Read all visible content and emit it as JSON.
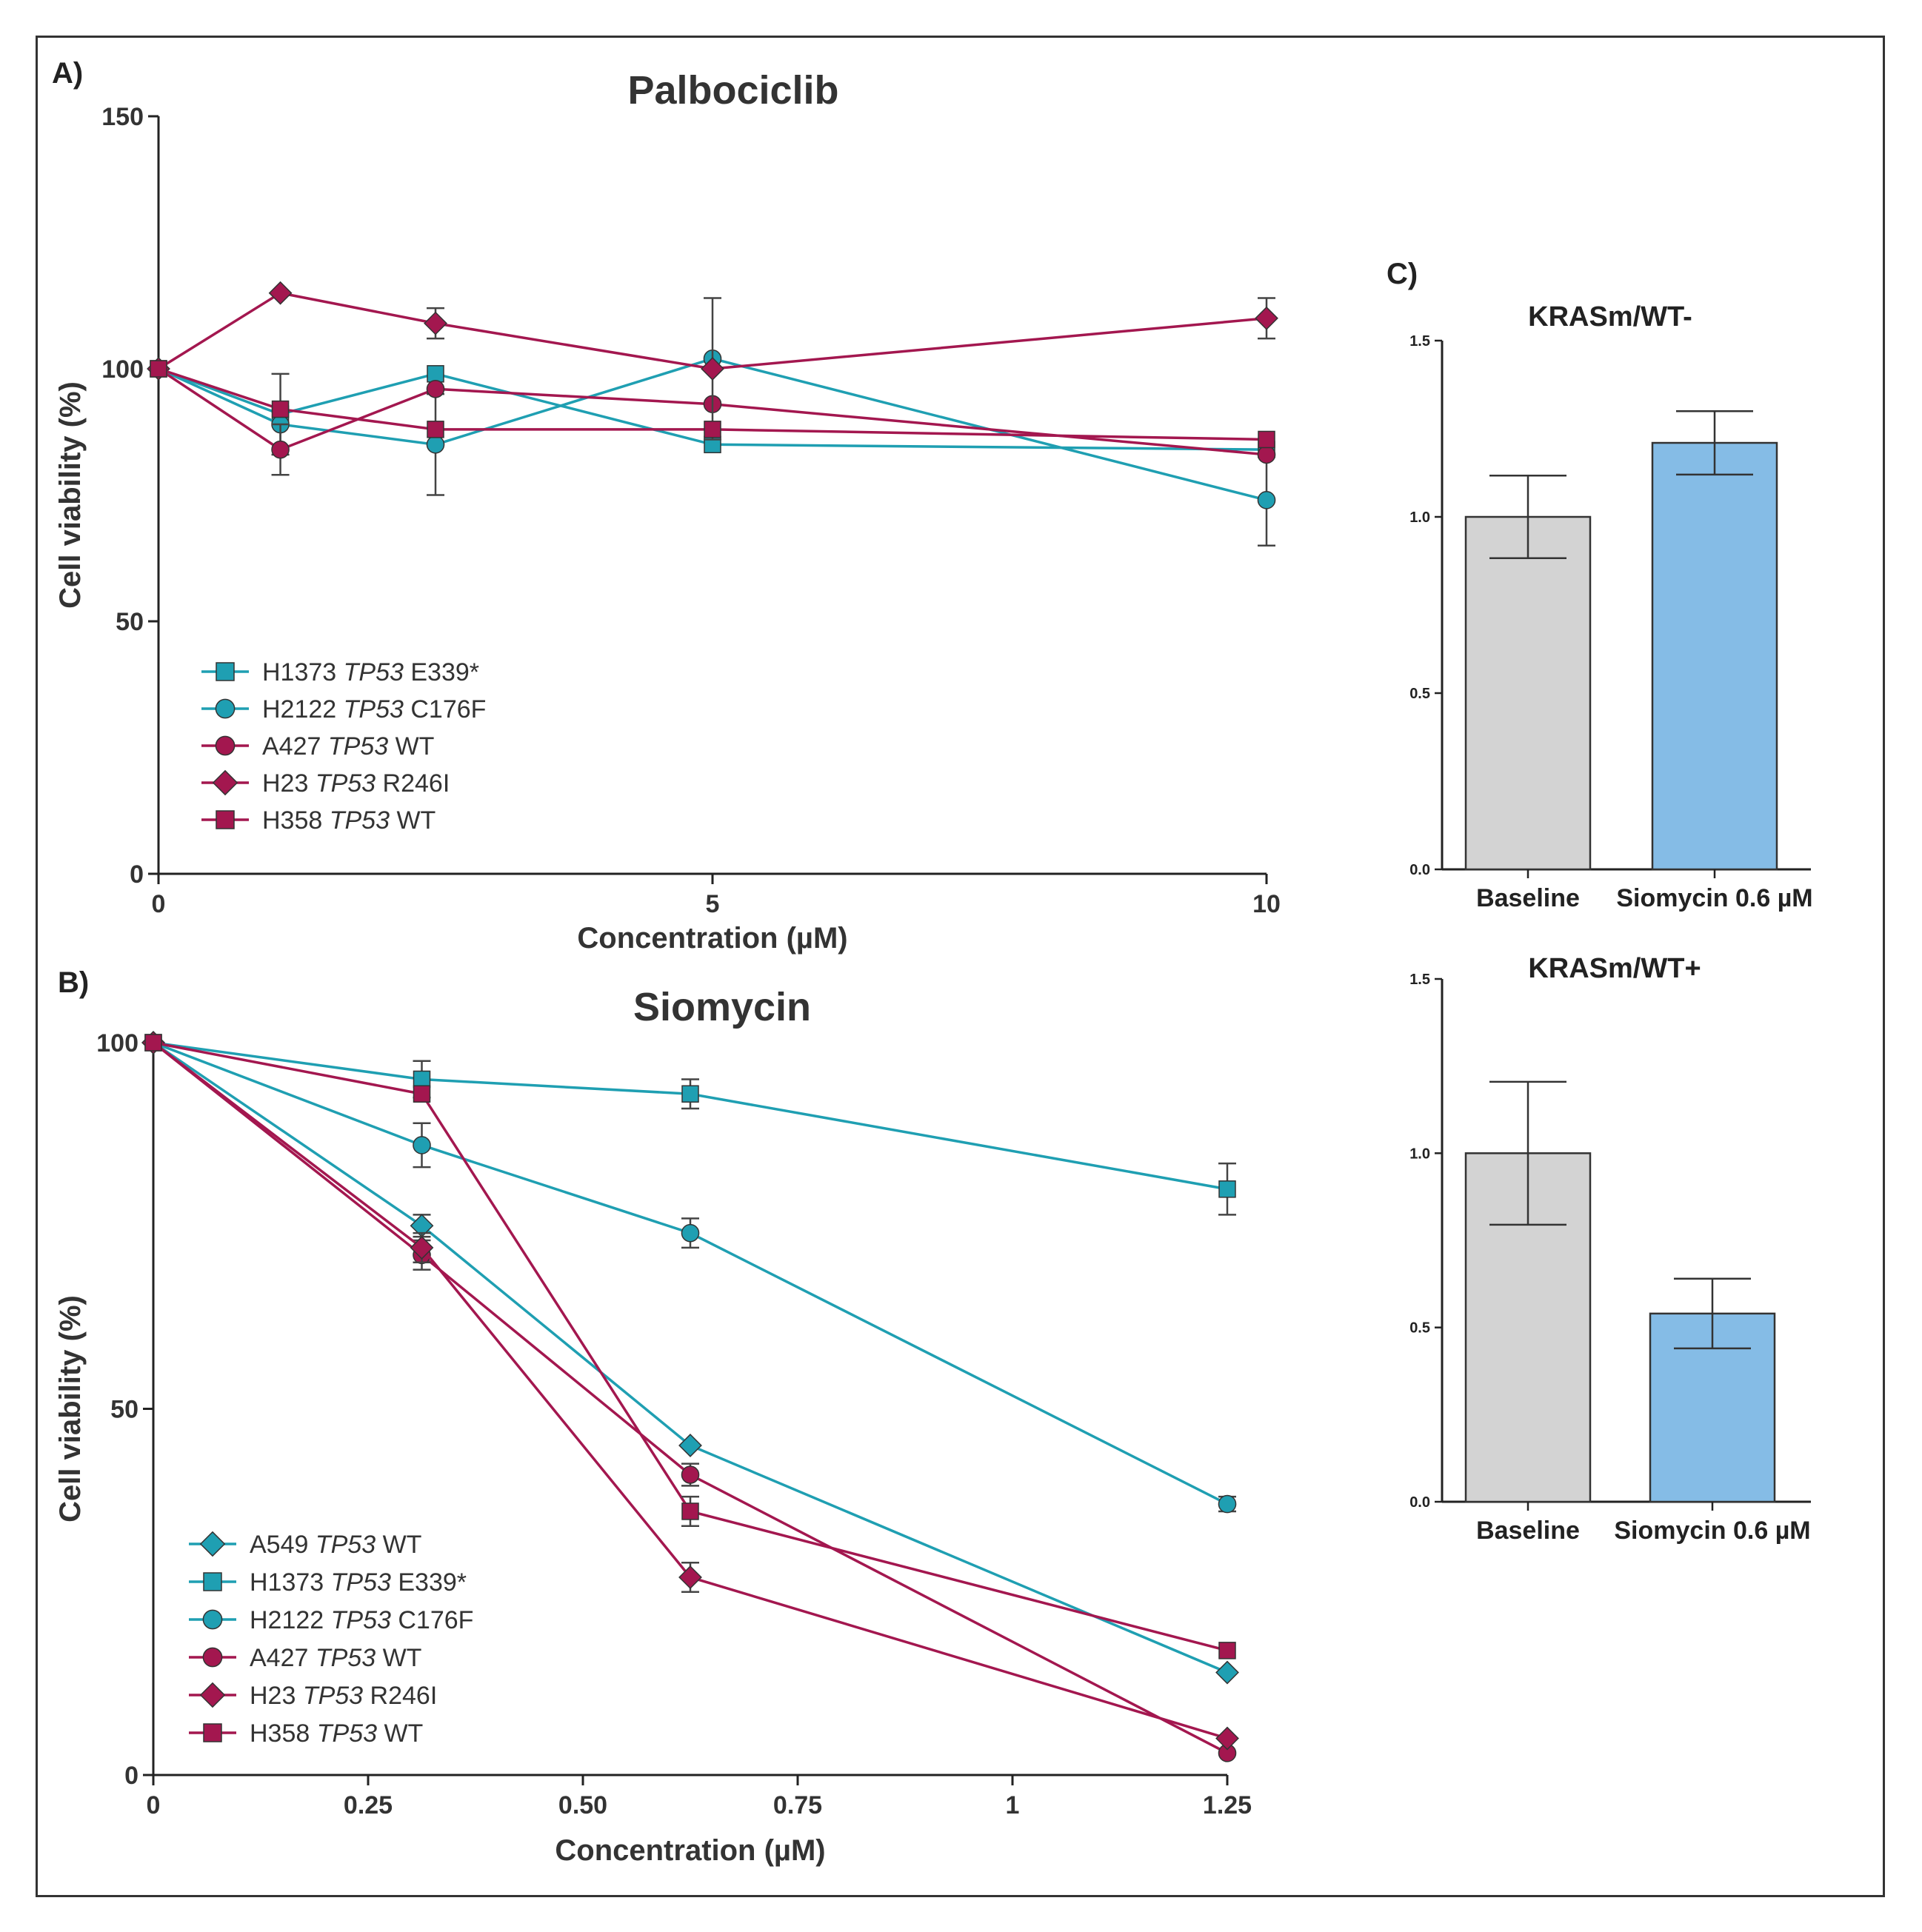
{
  "colors": {
    "teal": "#1f9fb2",
    "magenta": "#a3174f",
    "axis": "#222222",
    "grey_bar": "#d3d3d3",
    "blue_bar": "#85bce6"
  },
  "chart_data": [
    {
      "id": "A",
      "panel_label": "A)",
      "type": "line",
      "title": "Palbociclib",
      "xlabel": "Concentration (µM)",
      "ylabel": "Cell viability (%)",
      "xlim": [
        0,
        10
      ],
      "ylim": [
        0,
        150
      ],
      "xticks": [
        0,
        5,
        10
      ],
      "xtick_labels": [
        "0",
        "5",
        "10"
      ],
      "yticks": [
        0,
        50,
        100,
        150
      ],
      "ytick_labels": [
        "0",
        "50",
        "100",
        "150"
      ],
      "grid": false,
      "legend_position": "bottom-left",
      "series": [
        {
          "name": "H1373",
          "gene": "TP53",
          "mutation": "E339*",
          "color": "teal",
          "marker": "square",
          "x": [
            0,
            1.1,
            2.5,
            5,
            10
          ],
          "y": [
            100,
            91,
            99,
            85,
            84
          ],
          "err": [
            0,
            8,
            0,
            0,
            0
          ]
        },
        {
          "name": "H2122",
          "gene": "TP53",
          "mutation": "C176F",
          "color": "teal",
          "marker": "circle",
          "x": [
            0,
            1.1,
            2.5,
            5,
            10
          ],
          "y": [
            100,
            89,
            85,
            102,
            74
          ],
          "err": [
            0,
            0,
            10,
            0,
            9
          ]
        },
        {
          "name": "A427",
          "gene": "TP53",
          "mutation": "WT",
          "color": "magenta",
          "marker": "circle",
          "x": [
            0,
            1.1,
            2.5,
            5,
            10
          ],
          "y": [
            100,
            84,
            96,
            93,
            83
          ],
          "err": [
            0,
            5,
            0,
            0,
            0
          ]
        },
        {
          "name": "H23",
          "gene": "TP53",
          "mutation": "R246I",
          "color": "magenta",
          "marker": "diamond",
          "x": [
            0,
            1.1,
            2.5,
            5,
            10
          ],
          "y": [
            100,
            115,
            109,
            100,
            110
          ],
          "err": [
            0,
            0,
            3,
            14,
            4
          ]
        },
        {
          "name": "H358",
          "gene": "TP53",
          "mutation": "WT",
          "color": "magenta",
          "marker": "square",
          "x": [
            0,
            1.1,
            2.5,
            5,
            10
          ],
          "y": [
            100,
            92,
            88,
            88,
            86
          ],
          "err": [
            0,
            0,
            0,
            0,
            0
          ]
        }
      ]
    },
    {
      "id": "B",
      "panel_label": "B)",
      "type": "line",
      "title": "Siomycin",
      "xlabel": "Concentration (µM)",
      "ylabel": "Cell viability (%)",
      "xlim": [
        0,
        1.25
      ],
      "ylim": [
        0,
        100
      ],
      "xticks": [
        0,
        0.25,
        0.5,
        0.75,
        1,
        1.25
      ],
      "xtick_labels": [
        "0",
        "0.25",
        "0.50",
        "0.75",
        "1",
        "1.25"
      ],
      "yticks": [
        0,
        50,
        100
      ],
      "ytick_labels": [
        "0",
        "50",
        "100"
      ],
      "grid": false,
      "legend_position": "bottom-left",
      "series": [
        {
          "name": "A549",
          "gene": "TP53",
          "mutation": "WT",
          "color": "teal",
          "marker": "diamond",
          "x": [
            0,
            0.3125,
            0.625,
            1.25
          ],
          "y": [
            100,
            75,
            45,
            14
          ],
          "err": [
            0,
            1.5,
            0,
            0
          ]
        },
        {
          "name": "H1373",
          "gene": "TP53",
          "mutation": "E339*",
          "color": "teal",
          "marker": "square",
          "x": [
            0,
            0.3125,
            0.625,
            1.25
          ],
          "y": [
            100,
            95,
            93,
            80
          ],
          "err": [
            0,
            2.5,
            2,
            3.5
          ]
        },
        {
          "name": "H2122",
          "gene": "TP53",
          "mutation": "C176F",
          "color": "teal",
          "marker": "circle",
          "x": [
            0,
            0.3125,
            0.625,
            1.25
          ],
          "y": [
            100,
            86,
            74,
            37
          ],
          "err": [
            0,
            3,
            2,
            1
          ]
        },
        {
          "name": "A427",
          "gene": "TP53",
          "mutation": "WT",
          "color": "magenta",
          "marker": "circle",
          "x": [
            0,
            0.3125,
            0.625,
            1.25
          ],
          "y": [
            100,
            71,
            41,
            3
          ],
          "err": [
            0,
            2,
            1.5,
            0
          ]
        },
        {
          "name": "H23",
          "gene": "TP53",
          "mutation": "R246I",
          "color": "magenta",
          "marker": "diamond",
          "x": [
            0,
            0.3125,
            0.625,
            1.25
          ],
          "y": [
            100,
            72,
            27,
            5
          ],
          "err": [
            0,
            2,
            2,
            0
          ]
        },
        {
          "name": "H358",
          "gene": "TP53",
          "mutation": "WT",
          "color": "magenta",
          "marker": "square",
          "x": [
            0,
            0.3125,
            0.625,
            1.25
          ],
          "y": [
            100,
            93,
            36,
            17
          ],
          "err": [
            0,
            0,
            2,
            0
          ]
        }
      ]
    },
    {
      "id": "C1",
      "panel_label": "C)",
      "type": "bar",
      "title": "KRASm/WT-",
      "categories": [
        "Baseline",
        "Siomycin 0.6 µM"
      ],
      "values": [
        1.0,
        1.21
      ],
      "errors": [
        0.117,
        0.09
      ],
      "bar_colors": [
        "grey_bar",
        "blue_bar"
      ],
      "ylim": [
        0,
        1.5
      ],
      "yticks": [
        0,
        0.5,
        1.0,
        1.5
      ],
      "ytick_labels": [
        "0.0",
        "0.5",
        "1.0",
        "1.5"
      ],
      "xlabel": "",
      "ylabel": ""
    },
    {
      "id": "C2",
      "panel_label": "",
      "type": "bar",
      "title": "KRASm/WT+",
      "categories": [
        "Baseline",
        "Siomycin 0.6 µM"
      ],
      "values": [
        1.0,
        0.54
      ],
      "errors": [
        0.205,
        0.1
      ],
      "bar_colors": [
        "grey_bar",
        "blue_bar"
      ],
      "ylim": [
        0,
        1.5
      ],
      "yticks": [
        0,
        0.5,
        1.0,
        1.5
      ],
      "ytick_labels": [
        "0.0",
        "0.5",
        "1.0",
        "1.5"
      ],
      "xlabel": "",
      "ylabel": ""
    }
  ]
}
